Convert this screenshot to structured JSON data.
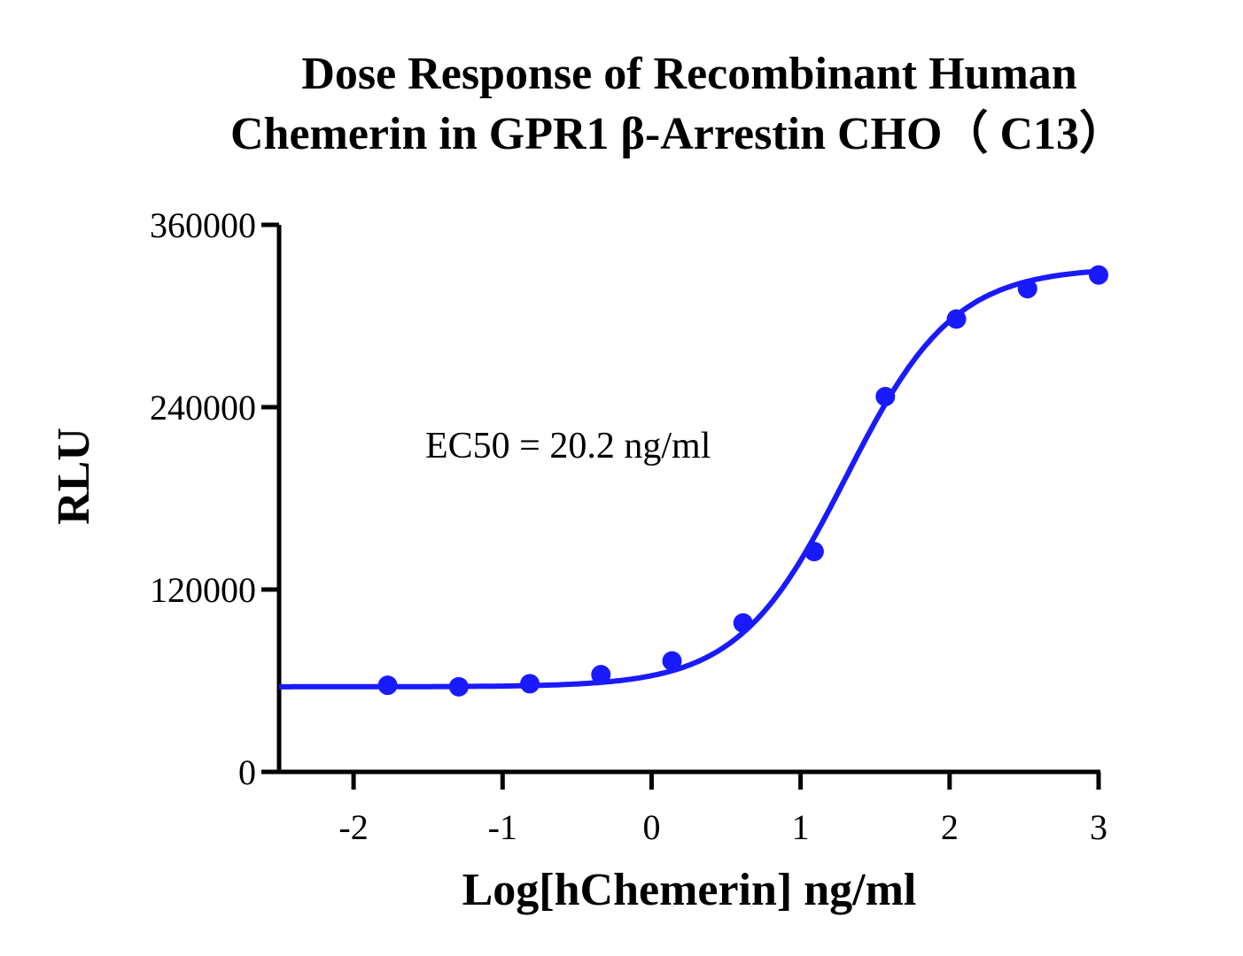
{
  "chart_data": {
    "type": "scatter",
    "title_lines": [
      "Dose Response of Recombinant Human",
      "Chemerin in GPR1 β-Arrestin CHO（ C13）"
    ],
    "xlabel": "Log[hChemerin] ng/ml",
    "ylabel": "RLU",
    "xlim": [
      -2.5,
      3
    ],
    "ylim": [
      0,
      360000
    ],
    "xticks": [
      -2,
      -1,
      0,
      1,
      2,
      3
    ],
    "xtick_labels": [
      "-2",
      "-1",
      "0",
      "1",
      "2",
      "3"
    ],
    "yticks": [
      0,
      120000,
      240000,
      360000
    ],
    "ytick_labels": [
      "0",
      "120000",
      "240000",
      "360000"
    ],
    "grid": false,
    "annotation": "EC50 = 20.2 ng/ml",
    "color": "#1a1aff",
    "points": {
      "x": [
        -1.771,
        -1.294,
        -0.817,
        -0.34,
        0.137,
        0.614,
        1.091,
        1.569,
        2.046,
        2.523,
        3.0
      ],
      "y": [
        57000,
        56000,
        58000,
        64000,
        73000,
        98000,
        145000,
        247000,
        298000,
        318000,
        327000
      ]
    },
    "fit": {
      "model": "4PL",
      "bottom": 56000,
      "top": 332000,
      "logEC50": 1.305,
      "hill": 1.2
    }
  }
}
